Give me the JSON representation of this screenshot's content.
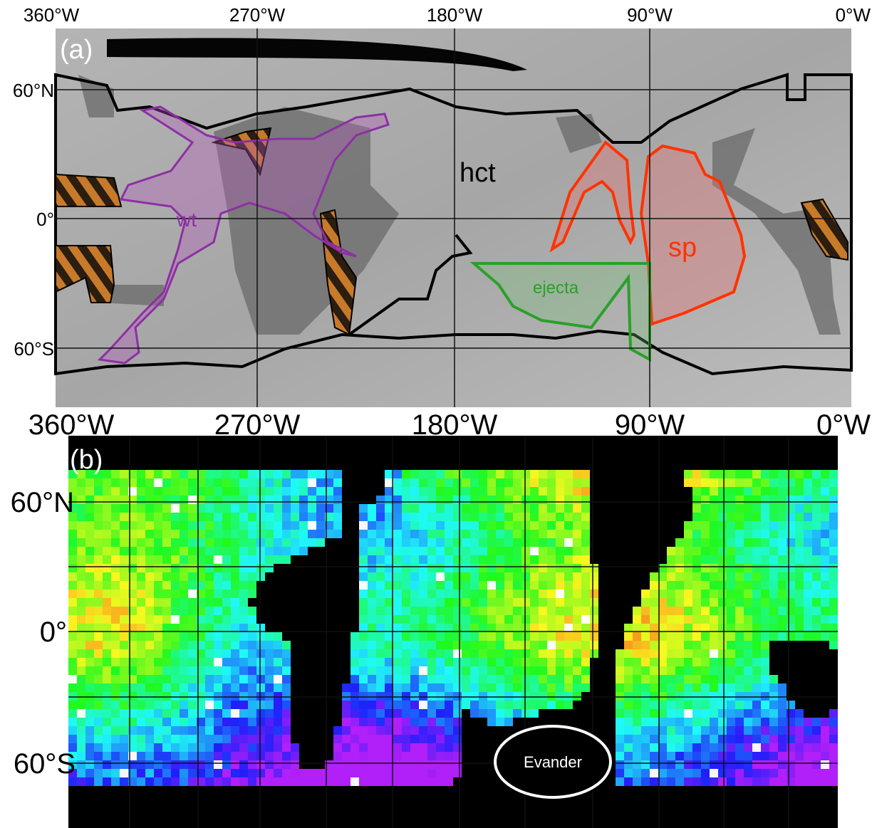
{
  "panel_a": {
    "label": "(a)",
    "top_axis": [
      "360°W",
      "270°W",
      "180°W",
      "90°W",
      "0°W"
    ],
    "lat_labels": [
      "60°N",
      "0°",
      "60°S"
    ],
    "units": {
      "hct": "hct",
      "wt": "wt",
      "sp": "sp",
      "ejecta": "ejecta"
    }
  },
  "bottom_axis": [
    "360°W",
    "270°W",
    "180°W",
    "90°W",
    "0°W"
  ],
  "panel_b": {
    "label": "(b)",
    "lat_labels": [
      "60°N",
      "0°",
      "60°S"
    ],
    "crater": "Evander"
  }
}
